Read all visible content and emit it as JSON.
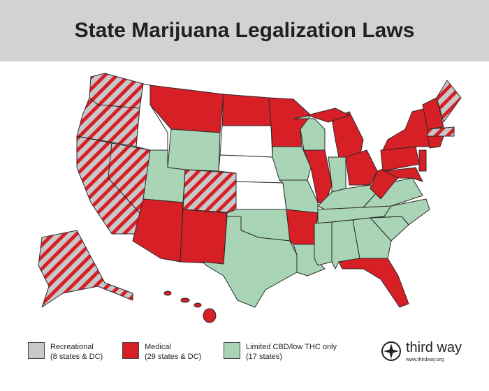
{
  "header": {
    "title": "State Marijuana Legalization Laws"
  },
  "legend": [
    {
      "label": "Recreational",
      "detail": "(8 states & DC)",
      "color": "#c7c8ca"
    },
    {
      "label": "Medical",
      "detail": "(29 states & DC)",
      "color": "#d71f26"
    },
    {
      "label": "Limited CBD/low THC only",
      "detail": "(17 states)",
      "color": "#a9d4b5"
    }
  ],
  "logo": {
    "name": "third way",
    "url": "www.thirdway.org"
  }
}
